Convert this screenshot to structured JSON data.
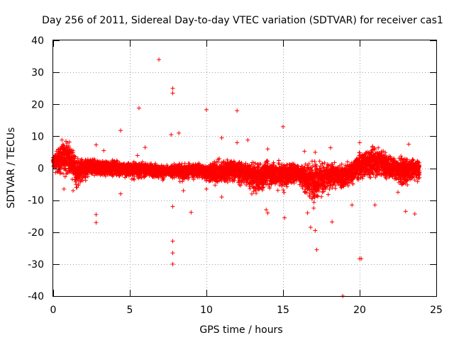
{
  "chart_data": {
    "type": "scatter",
    "title": "Day 256 of 2011, Sidereal Day-to-day VTEC variation (SDTVAR) for receiver cas1",
    "xlabel": "GPS time / hours",
    "ylabel": "SDTVAR / TECUs",
    "xlim": [
      0,
      25
    ],
    "ylim": [
      -40,
      40
    ],
    "xticks": [
      0,
      5,
      10,
      15,
      20,
      25
    ],
    "yticks": [
      -40,
      -30,
      -20,
      -10,
      0,
      10,
      20,
      30,
      40
    ],
    "grid": true,
    "marker": "+",
    "series_color": "#ff0000",
    "series": [
      {
        "name": "SDTVAR",
        "outliers": [
          {
            "x": 6.9,
            "y": 34.0
          },
          {
            "x": 7.8,
            "y": 25.0
          },
          {
            "x": 7.8,
            "y": 23.5
          },
          {
            "x": 5.6,
            "y": 18.8
          },
          {
            "x": 10.0,
            "y": 18.3
          },
          {
            "x": 12.0,
            "y": 18.0
          },
          {
            "x": 4.4,
            "y": 11.8
          },
          {
            "x": 15.0,
            "y": 13.0
          },
          {
            "x": 8.2,
            "y": 11.0
          },
          {
            "x": 7.7,
            "y": 10.5
          },
          {
            "x": 11.0,
            "y": 9.5
          },
          {
            "x": 12.0,
            "y": 8.0
          },
          {
            "x": 12.7,
            "y": 8.8
          },
          {
            "x": 2.8,
            "y": 7.3
          },
          {
            "x": 6.0,
            "y": 6.5
          },
          {
            "x": 14.0,
            "y": 6.0
          },
          {
            "x": 18.1,
            "y": 6.4
          },
          {
            "x": 23.2,
            "y": 7.5
          },
          {
            "x": 20.0,
            "y": 8.0
          },
          {
            "x": 2.8,
            "y": -14.5
          },
          {
            "x": 2.8,
            "y": -17.0
          },
          {
            "x": 9.0,
            "y": -13.8
          },
          {
            "x": 7.8,
            "y": -12.0
          },
          {
            "x": 7.8,
            "y": -22.8
          },
          {
            "x": 7.8,
            "y": -26.5
          },
          {
            "x": 7.8,
            "y": -30.0
          },
          {
            "x": 15.1,
            "y": -15.5
          },
          {
            "x": 16.8,
            "y": -18.5
          },
          {
            "x": 17.1,
            "y": -19.5
          },
          {
            "x": 17.2,
            "y": -25.5
          },
          {
            "x": 18.2,
            "y": -16.8
          },
          {
            "x": 20.0,
            "y": -28.3
          },
          {
            "x": 20.1,
            "y": -28.3
          },
          {
            "x": 18.9,
            "y": -40.0
          },
          {
            "x": 23.0,
            "y": -13.5
          },
          {
            "x": 23.6,
            "y": -14.3
          },
          {
            "x": 21.0,
            "y": -11.5
          },
          {
            "x": 13.9,
            "y": -13.0
          },
          {
            "x": 14.0,
            "y": -14.0
          },
          {
            "x": 1.3,
            "y": -7.0
          },
          {
            "x": 0.7,
            "y": -6.5
          },
          {
            "x": 4.4,
            "y": -8.0
          },
          {
            "x": 8.5,
            "y": -7.0
          },
          {
            "x": 10.0,
            "y": -6.5
          },
          {
            "x": 11.0,
            "y": -9.0
          },
          {
            "x": 16.6,
            "y": -14.0
          },
          {
            "x": 17.0,
            "y": -12.5
          },
          {
            "x": 19.5,
            "y": -11.5
          },
          {
            "x": 22.5,
            "y": -7.5
          },
          {
            "x": 16.4,
            "y": 5.3
          },
          {
            "x": 17.1,
            "y": 5.0
          },
          {
            "x": 5.5,
            "y": 4.0
          },
          {
            "x": 3.3,
            "y": 5.5
          }
        ],
        "band_profile": {
          "x": [
            0.0,
            0.25,
            0.5,
            0.75,
            1.0,
            1.25,
            1.5,
            2.0,
            2.5,
            3.0,
            3.5,
            4.0,
            4.5,
            5.0,
            5.5,
            6.0,
            6.5,
            7.0,
            7.5,
            8.0,
            8.5,
            9.0,
            9.5,
            10.0,
            10.5,
            11.0,
            11.5,
            12.0,
            12.5,
            13.0,
            13.5,
            14.0,
            14.5,
            15.0,
            15.5,
            16.0,
            16.5,
            17.0,
            17.5,
            18.0,
            18.5,
            19.0,
            19.5,
            20.0,
            20.5,
            21.0,
            21.5,
            22.0,
            22.5,
            23.0,
            23.5,
            23.9
          ],
          "upper": [
            4.5,
            7.0,
            9.0,
            10.0,
            9.5,
            7.0,
            5.0,
            4.0,
            3.5,
            3.0,
            3.0,
            3.0,
            2.5,
            2.5,
            2.5,
            2.0,
            2.0,
            1.5,
            1.0,
            2.0,
            2.0,
            2.0,
            2.0,
            2.0,
            3.0,
            3.5,
            4.0,
            3.0,
            2.5,
            2.5,
            3.0,
            3.5,
            3.0,
            3.0,
            2.5,
            2.0,
            2.5,
            4.0,
            3.0,
            2.5,
            2.0,
            2.0,
            3.0,
            6.0,
            7.5,
            8.0,
            7.0,
            5.0,
            4.5,
            4.0,
            3.5,
            3.0
          ],
          "lower": [
            -1.5,
            -3.0,
            -4.0,
            -3.5,
            -3.0,
            -4.5,
            -8.5,
            -5.0,
            -4.0,
            -3.5,
            -3.5,
            -3.0,
            -4.0,
            -4.0,
            -4.0,
            -3.5,
            -4.0,
            -4.0,
            -4.0,
            -4.0,
            -5.0,
            -4.0,
            -4.0,
            -5.0,
            -6.5,
            -6.5,
            -6.0,
            -5.5,
            -6.5,
            -8.5,
            -9.5,
            -7.0,
            -7.5,
            -8.5,
            -6.0,
            -5.5,
            -9.5,
            -12.0,
            -10.5,
            -8.5,
            -7.0,
            -7.5,
            -6.0,
            -5.0,
            -4.5,
            -4.5,
            -4.5,
            -5.0,
            -6.0,
            -7.0,
            -5.0,
            -4.5
          ]
        }
      }
    ]
  }
}
